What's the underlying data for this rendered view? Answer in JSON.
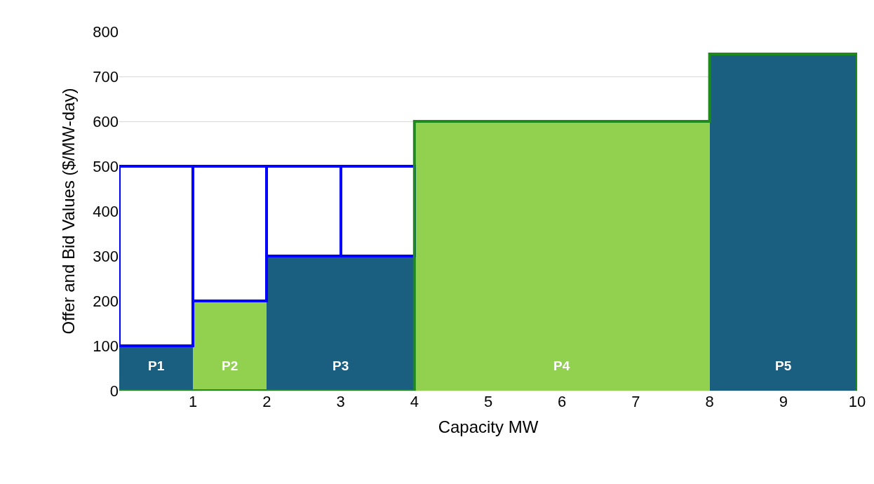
{
  "chart_data": {
    "type": "bar",
    "stacked": true,
    "xlabel": "Capacity MW",
    "ylabel": "Offer and Bid Values ($/MW-day)",
    "x": [
      0.5,
      1.5,
      2.5,
      3.5,
      4.5,
      5.5,
      6.5,
      7.5,
      8.5,
      9.5
    ],
    "xlim": [
      0,
      10
    ],
    "xticks": [
      1,
      2,
      3,
      4,
      5,
      6,
      7,
      8,
      9,
      10
    ],
    "ylim": [
      0,
      800
    ],
    "yticks": [
      0,
      100,
      200,
      300,
      400,
      500,
      600,
      700,
      800
    ],
    "grid": "y",
    "series": [
      {
        "colors": [
          "#1a5e80",
          "#92d050",
          "#1a5e80",
          "#1a5e80",
          "#92d050",
          "#92d050",
          "#92d050",
          "#92d050",
          "#1a5e80",
          "#1a5e80"
        ],
        "values": [
          100,
          200,
          300,
          300,
          600,
          600,
          600,
          600,
          750,
          750
        ]
      },
      {
        "color": "#0000ff",
        "values": [
          400,
          300,
          200,
          200,
          null,
          null,
          null,
          null,
          null,
          null
        ]
      },
      {
        "type": "line",
        "color": "#1e8a1e",
        "x": [
          0,
          4,
          4,
          8,
          8,
          10,
          10
        ],
        "values": [
          0,
          0,
          600,
          600,
          750,
          750,
          0
        ]
      }
    ],
    "annotations": [
      "P1",
      "P2",
      "P3",
      "P4",
      "P5"
    ]
  }
}
